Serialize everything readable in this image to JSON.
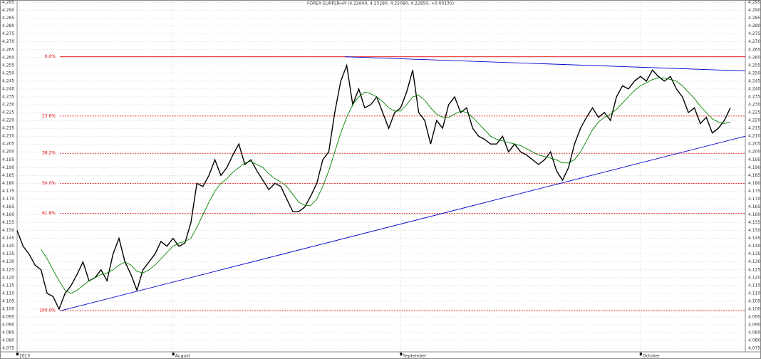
{
  "chart_data": {
    "type": "line",
    "title": "FOREX EURPLN=R (4.22640, 4.23280, 4.22080, 4.22850, +0.00130)",
    "xlim": [
      0,
      121.5
    ],
    "ylim": [
      4.0728,
      4.2966
    ],
    "yticks": [
      4.075,
      {
        "value": 4.08,
        "label": "4.080"
      },
      4.085,
      {
        "value": 4.09,
        "label": "4.090"
      },
      4.095,
      {
        "value": 4.1,
        "label": "4.100"
      },
      4.105,
      {
        "value": 4.11,
        "label": "4.110"
      },
      4.115,
      {
        "value": 4.12,
        "label": "4.120"
      },
      4.125,
      {
        "value": 4.13,
        "label": "4.130"
      },
      4.135,
      {
        "value": 4.14,
        "label": "4.140"
      },
      4.145,
      {
        "value": 4.15,
        "label": "4.150"
      },
      4.155,
      {
        "value": 4.16,
        "label": "4.160"
      },
      4.165,
      {
        "value": 4.17,
        "label": "4.170"
      },
      4.175,
      {
        "value": 4.18,
        "label": "4.180"
      },
      4.185,
      {
        "value": 4.19,
        "label": "4.190"
      },
      4.195,
      {
        "value": 4.2,
        "label": "4.200"
      },
      4.205,
      {
        "value": 4.21,
        "label": "4.210"
      },
      4.215,
      {
        "value": 4.22,
        "label": "4.220"
      },
      4.225,
      {
        "value": 4.23,
        "label": "4.230"
      },
      4.235,
      {
        "value": 4.24,
        "label": "4.240"
      },
      4.245,
      {
        "value": 4.25,
        "label": "4.250"
      },
      4.255,
      {
        "value": 4.26,
        "label": "4.260"
      },
      4.265,
      {
        "value": 4.27,
        "label": "4.270"
      },
      4.275,
      {
        "value": 4.28,
        "label": "4.280"
      },
      4.285,
      {
        "value": 4.29,
        "label": "4.290"
      },
      4.295
    ],
    "x_labels": [
      {
        "x": 0,
        "label": "2015"
      },
      {
        "x": 26,
        "label": "August"
      },
      {
        "x": 64,
        "label": "September"
      },
      {
        "x": 104,
        "label": "October"
      }
    ],
    "grid": true,
    "series": [
      {
        "color": "#000000",
        "values": [
          4.15,
          4.14,
          4.135,
          4.128,
          4.125,
          4.11,
          4.108,
          4.1,
          4.11,
          4.115,
          4.122,
          4.13,
          4.118,
          4.12,
          4.125,
          4.118,
          4.135,
          4.145,
          4.13,
          4.122,
          4.112,
          4.125,
          4.13,
          4.135,
          4.143,
          4.14,
          4.145,
          4.14,
          4.142,
          4.155,
          4.18,
          4.178,
          4.185,
          4.195,
          4.185,
          4.19,
          4.198,
          4.205,
          4.192,
          4.195,
          4.188,
          4.182,
          4.176,
          4.18,
          4.178,
          4.17,
          4.162,
          4.162,
          4.165,
          4.172,
          4.18,
          4.195,
          4.2,
          4.225,
          4.245,
          4.255,
          4.23,
          4.24,
          4.228,
          4.23,
          4.235,
          4.225,
          4.215,
          4.225,
          4.228,
          4.238,
          4.252,
          4.225,
          4.22,
          4.205,
          4.22,
          4.215,
          4.23,
          4.235,
          4.225,
          4.228,
          4.215,
          4.21,
          4.208,
          4.205,
          4.205,
          4.21,
          4.2,
          4.205,
          4.2,
          4.198,
          4.195,
          4.192,
          4.195,
          4.2,
          4.188,
          4.182,
          4.19,
          4.205,
          4.215,
          4.222,
          4.228,
          4.222,
          4.225,
          4.22,
          4.235,
          4.242,
          4.24,
          4.245,
          4.248,
          4.245,
          4.252,
          4.248,
          4.245,
          4.248,
          4.24,
          4.235,
          4.225,
          4.228,
          4.218,
          4.222,
          4.212,
          4.215,
          4.22,
          4.228
        ]
      },
      {
        "color": "#008000",
        "values": [
          null,
          null,
          null,
          null,
          4.138,
          4.132,
          4.125,
          4.118,
          4.112,
          4.11,
          4.112,
          4.115,
          4.118,
          4.12,
          4.122,
          4.123,
          4.125,
          4.128,
          4.13,
          4.128,
          4.124,
          4.123,
          4.125,
          4.128,
          4.132,
          4.136,
          4.14,
          4.142,
          4.143,
          4.145,
          4.152,
          4.16,
          4.168,
          4.175,
          4.18,
          4.183,
          4.187,
          4.19,
          4.193,
          4.194,
          4.192,
          4.19,
          4.186,
          4.183,
          4.181,
          4.178,
          4.173,
          4.168,
          4.166,
          4.166,
          4.17,
          4.178,
          4.188,
          4.2,
          4.212,
          4.222,
          4.23,
          4.235,
          4.238,
          4.237,
          4.235,
          4.232,
          4.228,
          4.226,
          4.226,
          4.23,
          4.235,
          4.236,
          4.233,
          4.228,
          4.224,
          4.222,
          4.222,
          4.224,
          4.226,
          4.225,
          4.222,
          4.218,
          4.214,
          4.21,
          4.208,
          4.207,
          4.206,
          4.205,
          4.204,
          4.202,
          4.2,
          4.198,
          4.197,
          4.196,
          4.195,
          4.193,
          4.193,
          4.195,
          4.2,
          4.207,
          4.214,
          4.219,
          4.222,
          4.224,
          4.227,
          4.231,
          4.235,
          4.239,
          4.242,
          4.244,
          4.246,
          4.247,
          4.247,
          4.246,
          4.245,
          4.242,
          4.238,
          4.234,
          4.229,
          4.225,
          4.221,
          4.219,
          4.218,
          4.219
        ]
      }
    ],
    "fib_levels": [
      {
        "label": "0.0%",
        "value": 4.2605
      },
      {
        "label": "23.6%",
        "value": 4.2228
      },
      {
        "label": "38.2%",
        "value": 4.1991
      },
      {
        "label": "50.0%",
        "value": 4.18
      },
      {
        "label": "61.8%",
        "value": 4.1609
      },
      {
        "label": "100.0%",
        "value": 4.099
      }
    ],
    "fib_color": "#e00000",
    "trendlines": [
      {
        "color": "#0000cc",
        "x": [
          54.7,
          121.5
        ],
        "values": [
          4.2605,
          4.2515
        ]
      },
      {
        "color": "#0000cc",
        "x": [
          7.3,
          121.5
        ],
        "values": [
          4.099,
          4.21
        ]
      }
    ]
  }
}
